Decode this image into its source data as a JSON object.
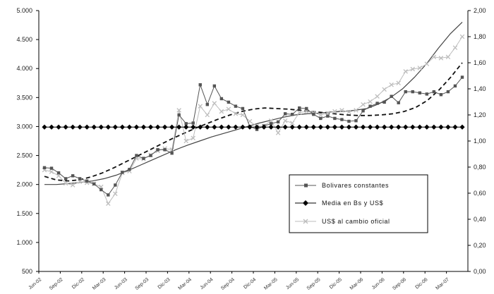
{
  "chart_data": {
    "type": "line",
    "y_left": {
      "min": 500,
      "max": 5000,
      "ticks": [
        "500",
        "1.000",
        "1.500",
        "2.000",
        "2.500",
        "3.000",
        "3.500",
        "4.000",
        "4.500",
        "5.000"
      ]
    },
    "y_right": {
      "min": 0,
      "max": 2,
      "ticks": [
        "0,00",
        "0,20",
        "0,40",
        "0,60",
        "0,80",
        "1,00",
        "1,20",
        "1,40",
        "1,60",
        "1,80",
        "2,00"
      ]
    },
    "x_labels": [
      "Jun-02",
      "Sep-02",
      "Dic-02",
      "Mar-03",
      "Jun-03",
      "Sep-03",
      "Dic-03",
      "Mar-04",
      "Jun-04",
      "Sep-04",
      "Dic-04",
      "Mar-05",
      "Jun-05",
      "Sep-05",
      "Dic-05",
      "Mar-06",
      "Jun-06",
      "Sep-06",
      "Dic-06",
      "Mar-07"
    ],
    "legend_position": "bottom-right",
    "series": [
      {
        "name": "Bolivares constantes",
        "axis": "left",
        "color": "#555555",
        "marker": "square",
        "values": [
          2290,
          2280,
          2200,
          2100,
          2150,
          2100,
          2060,
          2010,
          1910,
          1820,
          1990,
          2210,
          2260,
          2500,
          2450,
          2500,
          2600,
          2600,
          2540,
          3200,
          3050,
          3060,
          3720,
          3380,
          3700,
          3480,
          3420,
          3350,
          3310,
          3000,
          2950,
          3010,
          3050,
          3080,
          3220,
          3210,
          3320,
          3310,
          3210,
          3140,
          3180,
          3140,
          3120,
          3090,
          3100,
          3270,
          3350,
          3400,
          3420,
          3520,
          3410,
          3600,
          3600,
          3580,
          3560,
          3600,
          3550,
          3600,
          3700,
          3850
        ]
      },
      {
        "name": "Media en Bs y US$",
        "axis": "left",
        "color": "#000000",
        "marker": "diamond",
        "values": [
          2990,
          2990,
          2990,
          2990,
          2990,
          2990,
          2990,
          2990,
          2990,
          2990,
          2990,
          2990,
          2990,
          2990,
          2990,
          2990,
          2990,
          2990,
          2990,
          2990,
          2990,
          2990,
          2990,
          2990,
          2990,
          2990,
          2990,
          2990,
          2990,
          2990,
          2990,
          2990,
          2990,
          2990,
          2990,
          2990,
          2990,
          2990,
          2990,
          2990,
          2990,
          2990,
          2990,
          2990,
          2990,
          2990,
          2990,
          2990,
          2990,
          2990,
          2990,
          2990,
          2990,
          2990,
          2990,
          2990,
          2990,
          2990,
          2990,
          2990
        ]
      },
      {
        "name": "US$ al cambio oficial",
        "axis": "left",
        "color": "#bdbdbd",
        "marker": "x",
        "values": [
          2250,
          2220,
          2150,
          2020,
          1990,
          2050,
          2030,
          2010,
          1960,
          1670,
          1840,
          2200,
          2230,
          2450,
          2440,
          2510,
          2580,
          2620,
          2600,
          3280,
          2750,
          2800,
          3350,
          3200,
          3400,
          3260,
          3300,
          3220,
          3200,
          3090,
          3000,
          3010,
          3100,
          2890,
          3100,
          3060,
          3240,
          3260,
          3240,
          3200,
          3230,
          3260,
          3280,
          3250,
          3280,
          3380,
          3430,
          3520,
          3640,
          3720,
          3750,
          3950,
          3990,
          4010,
          4080,
          4200,
          4180,
          4200,
          4360,
          4550
        ]
      }
    ],
    "trendlines": [
      {
        "style": "solid",
        "color": "#444444",
        "values": [
          2000,
          2000,
          2015,
          2035,
          2060,
          2100,
          2160,
          2240,
          2330,
          2420,
          2510,
          2600,
          2680,
          2750,
          2820,
          2880,
          2940,
          3000,
          3060,
          3110,
          3160,
          3200,
          3220,
          3230,
          3250,
          3260,
          3280,
          3310,
          3390,
          3500,
          3650,
          3850,
          4080,
          4350,
          4600,
          4800
        ]
      },
      {
        "style": "dashed",
        "color": "#111111",
        "values": [
          2140,
          2080,
          2060,
          2080,
          2130,
          2200,
          2290,
          2390,
          2490,
          2590,
          2690,
          2790,
          2880,
          2970,
          3050,
          3130,
          3200,
          3260,
          3300,
          3320,
          3310,
          3300,
          3280,
          3260,
          3240,
          3220,
          3200,
          3190,
          3190,
          3200,
          3220,
          3260,
          3330,
          3450,
          3630,
          3850,
          4100
        ]
      }
    ]
  }
}
